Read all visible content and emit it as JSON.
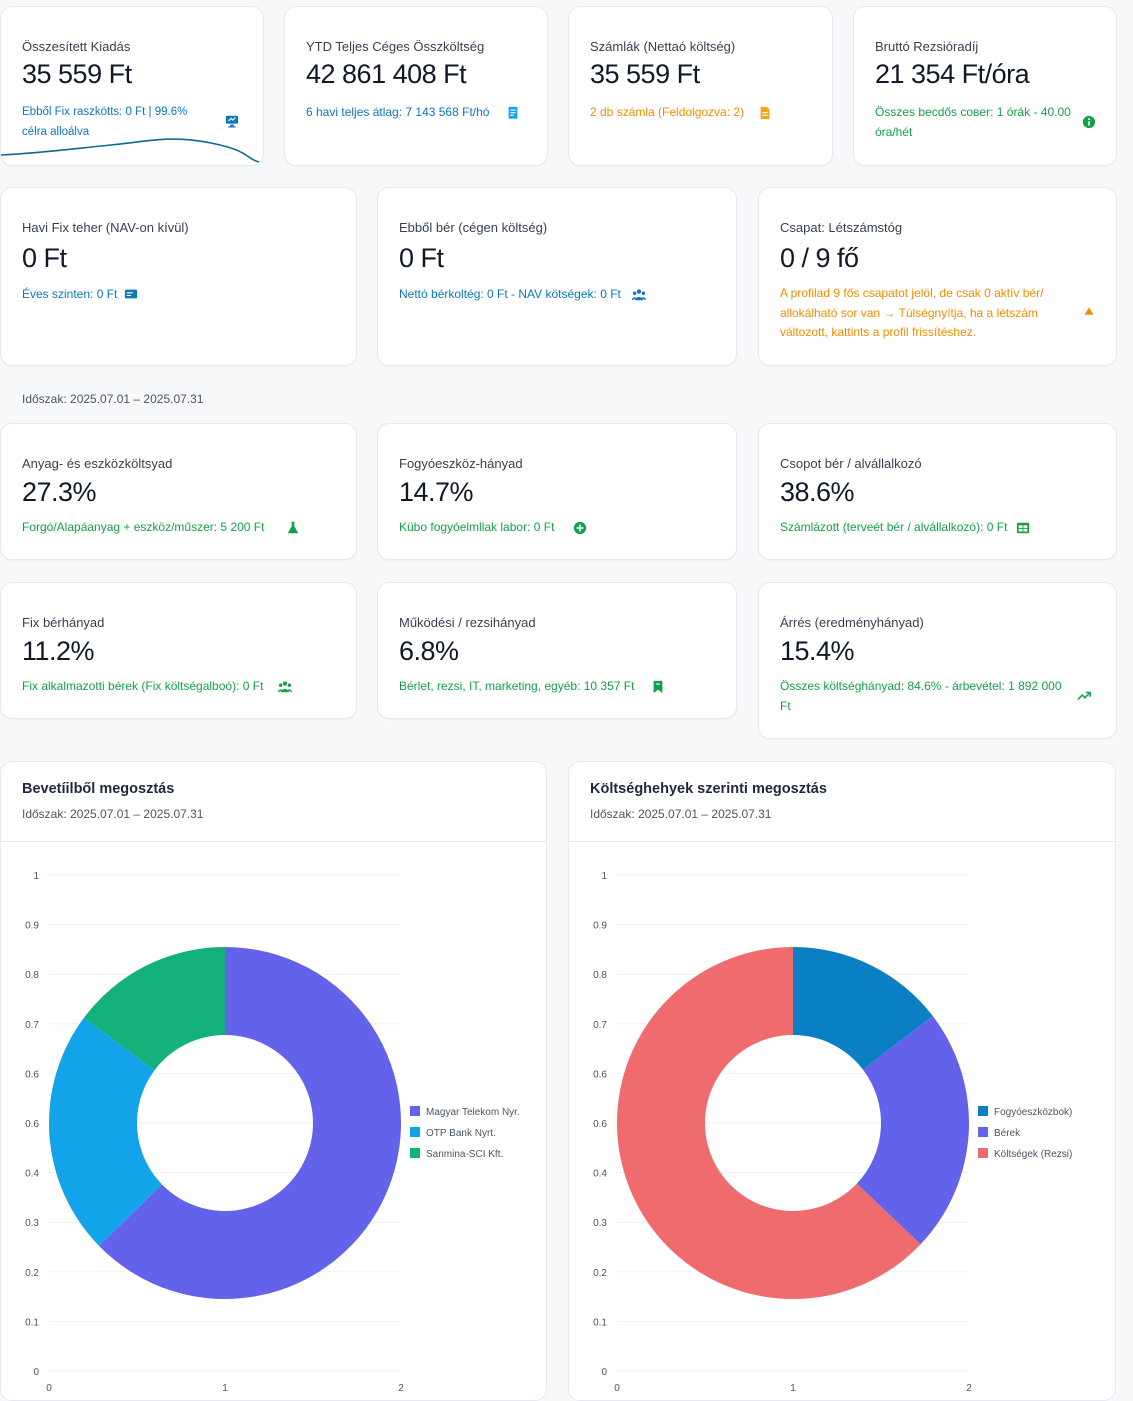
{
  "kpi_row1": [
    {
      "label": "Összesített Kiadás",
      "value": "35 559 Ft",
      "sub": "Ebből Fix raszkötts: 0 Ft | 99.6% célra allоálva",
      "icon": "monitor-icon",
      "color": "#0b78b8"
    },
    {
      "label": "YTD Teljes Céges Összköltség",
      "value": "42 861 408 Ft",
      "sub": "6 havi teljes átlag: 7 143 568 Ft/hó",
      "icon": "receipt-icon",
      "color": "#0b78b8"
    },
    {
      "label": "Számlák (Nettaó költség)",
      "value": "35 559 Ft",
      "sub": "2 db számla (Feldolgozva: 2)",
      "icon": "document-icon",
      "color": "#f08c00"
    },
    {
      "label": "Bruttó Rezsióradíj",
      "value": "21 354 Ft/óra",
      "sub": "Összes becdős cовer: 1 órák - 40.00 óra/hét",
      "icon": "info-icon",
      "color": "#14a04a"
    }
  ],
  "kpi_row2": [
    {
      "label": "Havi Fix teher (NAV-on kívül)",
      "value": "0 Ft",
      "sub": "Éves szinten: 0 Ft",
      "icon": "wallet-icon",
      "color": "#0b78b8"
    },
    {
      "label": "Ebből bér (cégen költség)",
      "value": "0 Ft",
      "sub": "Nettó bérkoltég: 0 Ft - NAV kötségek: 0 Ft",
      "icon": "people-icon",
      "color": "#0b78b8"
    },
    {
      "label": "Csapat: Létszámstóg",
      "value": "0 / 9 fő",
      "sub": "A profilad 9 fős csapatot jelöl, de csak 0 aktív bér/ allokálható sor van → Túlségnyítja, ha a létszám változott, kattints a profil frissítéshez.",
      "icon": "warning-icon",
      "color": "#f08c00"
    }
  ],
  "period_text": "Időszak: 2025.07.01 – 2025.07.31",
  "kpi_row3": [
    {
      "label": "Anyag- és eszközköltsyad",
      "value": "27.3%",
      "sub": "Forgó/Alapáanyag + eszköz/műszer: 5 200 Ft",
      "icon": "flask-icon",
      "color": "#14a04a"
    },
    {
      "label": "Fogyóeszköz-hányad",
      "value": "14.7%",
      "sub": "Kübo fogyóelmllak labor: 0 Ft",
      "icon": "plus-circle-icon",
      "color": "#14a04a"
    },
    {
      "label": "Csopot bér / alvállalkozó",
      "value": "38.6%",
      "sub": "Számlázott (terveét bér / alvállalkozó): 0 Ft",
      "icon": "table-icon",
      "color": "#14a04a"
    }
  ],
  "kpi_row4": [
    {
      "label": "Fix bérhányad",
      "value": "11.2%",
      "sub": "Fix alkalmazotti bérek (Fix költségalboó): 0 Ft",
      "icon": "people-icon",
      "color": "#14a04a"
    },
    {
      "label": "Működési / rezsihányad",
      "value": "6.8%",
      "sub": "Bérlet, rezsi, IT, marketing, egyéb: 10 357 Ft",
      "icon": "bookmark-icon",
      "color": "#14a04a"
    },
    {
      "label": "Árrés (eredményhányad)",
      "value": "15.4%",
      "sub": "Összes költséghányad: 84.6% - árbevétel: 1 892 000 Ft",
      "icon": "trend-up-icon",
      "color": "#14a04a"
    }
  ],
  "charts": [
    {
      "title": "Bevetíilből megosztás",
      "period": "Időszak: 2025.07.01 – 2025.07.31"
    },
    {
      "title": "Költséghehyek szerinti megosztás",
      "period": "Időszak: 2025.07.01 – 2025.07.31"
    }
  ],
  "chart_data": [
    {
      "type": "pie",
      "title": "Bevetíilből megosztás",
      "y_ticks": [
        "1",
        "0.9",
        "0.8",
        "0.7",
        "0.6",
        "0.6",
        "0.4",
        "0.3",
        "0.2",
        "0.1",
        "0"
      ],
      "x_ticks": [
        "0",
        "1",
        "2"
      ],
      "slices": [
        {
          "name": "Magyar Telekom Nyr.",
          "value": 0.627,
          "color": "#6262ea"
        },
        {
          "name": "OTP Bank Nyrt.",
          "value": 0.225,
          "color": "#12a3e8"
        },
        {
          "name": "Sanmina-SCI Kft.",
          "value": 0.148,
          "color": "#12b17a"
        }
      ]
    },
    {
      "type": "pie",
      "title": "Költséghehyek szerinti megosztás",
      "y_ticks": [
        "1",
        "0.9",
        "0.8",
        "0.7",
        "0.6",
        "0.6",
        "0.4",
        "0.3",
        "0.2",
        "0.1",
        "0"
      ],
      "x_ticks": [
        "0",
        "1",
        "2"
      ],
      "slices": [
        {
          "name": "Fogyóeszközbok)",
          "value": 0.146,
          "color": "#0a7fc3"
        },
        {
          "name": "Bérek",
          "value": 0.225,
          "color": "#6262ea"
        },
        {
          "name": "Költségek (Rezsi)",
          "value": 0.629,
          "color": "#f06b6e"
        }
      ]
    }
  ]
}
